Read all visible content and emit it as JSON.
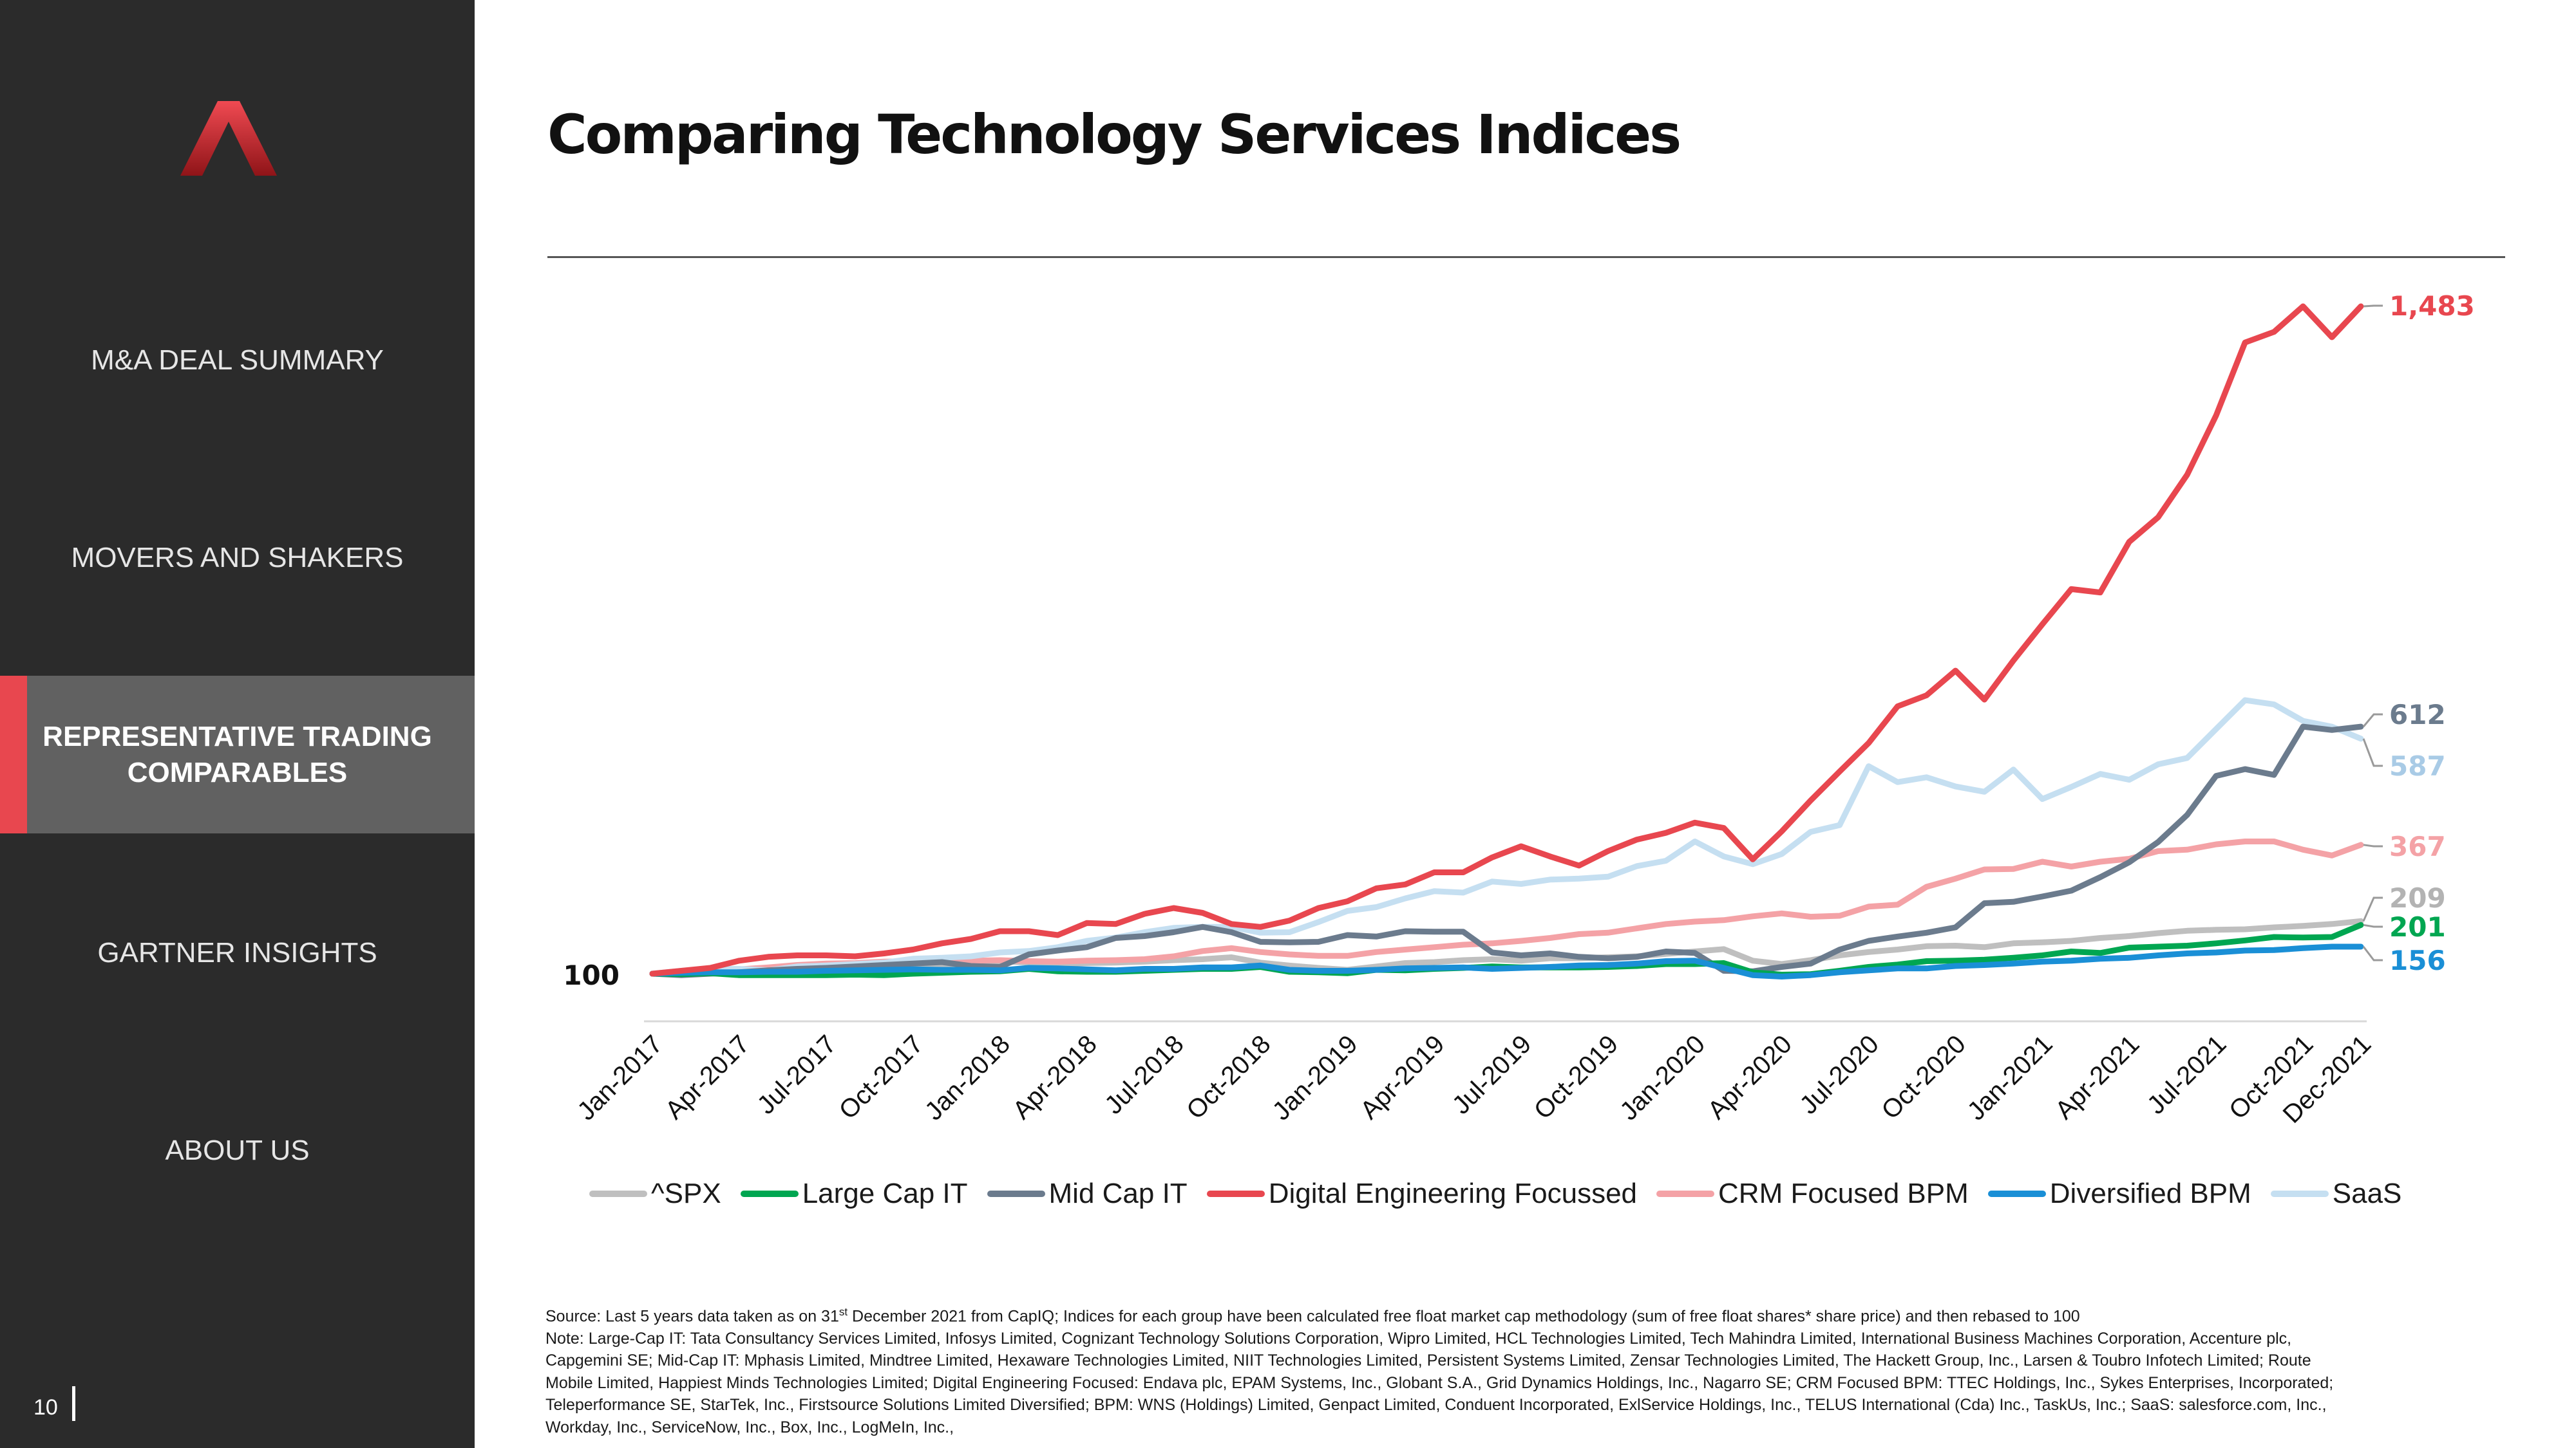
{
  "sidebar": {
    "logo_icon": "red-chevron-logo",
    "items": [
      {
        "label": "M&A DEAL SUMMARY",
        "active": false
      },
      {
        "label": "MOVERS AND SHAKERS",
        "active": false
      },
      {
        "label": [
          "REPRESENTATIVE TRADING",
          "COMPARABLES"
        ],
        "active": true
      },
      {
        "label": "GARTNER INSIGHTS",
        "active": false
      },
      {
        "label": "ABOUT US",
        "active": false
      }
    ],
    "page_number": "10"
  },
  "page": {
    "title": "Comparing Technology Services Indices"
  },
  "footnotes": {
    "source_pre": "Source: Last 5 years data taken as on 31",
    "source_sup": "st",
    "source_post": " December 2021 from CapIQ; Indices for each group have been calculated free float market cap methodology (sum of free float shares* share price) and then rebased to 100",
    "note_1": "Note: Large-Cap IT: Tata Consultancy Services Limited, Infosys Limited, Cognizant Technology Solutions Corporation, Wipro Limited, HCL Technologies Limited, Tech Mahindra Limited, International Business Machines Corporation, Accenture plc,",
    "note_2": "Capgemini SE; Mid-Cap IT: Mphasis Limited, Mindtree Limited, Hexaware Technologies Limited, NIIT Technologies Limited, Persistent Systems Limited, Zensar Technologies Limited, The Hackett Group, Inc., Larsen & Toubro Infotech Limited; Route",
    "note_3": "Mobile Limited, Happiest Minds Technologies Limited; Digital Engineering Focused: Endava plc, EPAM Systems, Inc., Globant S.A., Grid Dynamics Holdings, Inc., Nagarro SE; CRM Focused BPM: TTEC Holdings, Inc., Sykes Enterprises, Incorporated;",
    "note_4": "Teleperformance SE, StarTek, Inc., Firstsource Solutions Limited Diversified; BPM: WNS (Holdings) Limited, Genpact Limited, Conduent Incorporated, ExlService Holdings, Inc., TELUS International (Cda) Inc., TaskUs, Inc.; SaaS: salesforce.com, Inc.,",
    "note_5": "Workday, Inc., ServiceNow, Inc., Box, Inc., LogMeIn, Inc.,"
  },
  "chart_data": {
    "type": "line",
    "x_start_label": "100",
    "x_tick_labels": [
      "Jan-2017",
      "Apr-2017",
      "Jul-2017",
      "Oct-2017",
      "Jan-2018",
      "Apr-2018",
      "Jul-2018",
      "Oct-2018",
      "Jan-2019",
      "Apr-2019",
      "Jul-2019",
      "Oct-2019",
      "Jan-2020",
      "Apr-2020",
      "Jul-2020",
      "Oct-2020",
      "Jan-2021",
      "Apr-2021",
      "Jul-2021",
      "Oct-2021",
      "Dec-2021"
    ],
    "x": [
      "Jan-2017",
      "Feb-2017",
      "Mar-2017",
      "Apr-2017",
      "May-2017",
      "Jun-2017",
      "Jul-2017",
      "Aug-2017",
      "Sep-2017",
      "Oct-2017",
      "Nov-2017",
      "Dec-2017",
      "Jan-2018",
      "Feb-2018",
      "Mar-2018",
      "Apr-2018",
      "May-2018",
      "Jun-2018",
      "Jul-2018",
      "Aug-2018",
      "Sep-2018",
      "Oct-2018",
      "Nov-2018",
      "Dec-2018",
      "Jan-2019",
      "Feb-2019",
      "Mar-2019",
      "Apr-2019",
      "May-2019",
      "Jun-2019",
      "Jul-2019",
      "Aug-2019",
      "Sep-2019",
      "Oct-2019",
      "Nov-2019",
      "Dec-2019",
      "Jan-2020",
      "Feb-2020",
      "Mar-2020",
      "Apr-2020",
      "May-2020",
      "Jun-2020",
      "Jul-2020",
      "Aug-2020",
      "Sep-2020",
      "Oct-2020",
      "Nov-2020",
      "Dec-2020",
      "Jan-2021",
      "Feb-2021",
      "Mar-2021",
      "Apr-2021",
      "May-2021",
      "Jun-2021",
      "Jul-2021",
      "Aug-2021",
      "Sep-2021",
      "Oct-2021",
      "Nov-2021",
      "Dec-2021"
    ],
    "ylim": [
      -50,
      1550
    ],
    "grid": false,
    "legend_position": "bottom",
    "end_labels": [
      "1,483",
      "612",
      "587",
      "367",
      "209",
      "201",
      "156"
    ],
    "series": [
      {
        "name": "^SPX",
        "color": "#bfbfbf",
        "end_label": "209",
        "values": [
          100,
          104,
          104,
          105,
          106,
          107,
          108,
          108,
          110,
          112,
          115,
          118,
          126,
          123,
          120,
          122,
          123,
          125,
          128,
          130,
          134,
          123,
          117,
          112,
          108,
          115,
          122,
          124,
          128,
          130,
          127,
          132,
          132,
          134,
          136,
          141,
          146,
          151,
          127,
          120,
          128,
          138,
          145,
          150,
          157,
          158,
          155,
          163,
          165,
          168,
          174,
          178,
          184,
          189,
          191,
          192,
          196,
          199,
          203,
          209
        ]
      },
      {
        "name": "Large Cap IT",
        "color": "#00a651",
        "end_label": "201",
        "values": [
          100,
          99,
          101,
          97,
          97,
          97,
          97,
          98,
          97,
          100,
          102,
          104,
          105,
          110,
          105,
          104,
          104,
          106,
          108,
          110,
          110,
          114,
          104,
          103,
          101,
          108,
          107,
          110,
          112,
          115,
          113,
          113,
          113,
          114,
          116,
          120,
          120,
          122,
          103,
          98,
          99,
          106,
          114,
          119,
          126,
          127,
          129,
          133,
          138,
          146,
          143,
          154,
          156,
          158,
          163,
          169,
          176,
          175,
          176,
          201
        ]
      },
      {
        "name": "Mid Cap IT",
        "color": "#6b7b8d",
        "end_label": "612",
        "values": [
          100,
          97,
          100,
          103,
          107,
          110,
          112,
          115,
          118,
          121,
          124,
          116,
          114,
          140,
          148,
          155,
          174,
          178,
          186,
          197,
          186,
          166,
          165,
          166,
          180,
          177,
          188,
          187,
          187,
          144,
          138,
          142,
          135,
          132,
          135,
          146,
          143,
          106,
          105,
          114,
          121,
          150,
          168,
          177,
          185,
          196,
          246,
          249,
          260,
          272,
          300,
          331,
          373,
          429,
          510,
          524,
          512,
          612,
          605,
          612
        ]
      },
      {
        "name": "Digital Engineering Focussed",
        "color": "#e8474f",
        "end_label": "1,483",
        "values": [
          100,
          106,
          112,
          127,
          135,
          138,
          138,
          136,
          142,
          150,
          163,
          172,
          188,
          188,
          180,
          205,
          203,
          224,
          236,
          226,
          203,
          197,
          210,
          236,
          250,
          277,
          285,
          310,
          310,
          341,
          364,
          343,
          324,
          354,
          378,
          392,
          413,
          402,
          337,
          395,
          459,
          519,
          578,
          654,
          677,
          728,
          668,
          749,
          824,
          897,
          890,
          995,
          1046,
          1134,
          1257,
          1408,
          1430,
          1483,
          1419,
          1483
        ]
      },
      {
        "name": "CRM Focused BPM",
        "color": "#f4a2a6",
        "end_label": "367",
        "values": [
          100,
          103,
          105,
          109,
          113,
          118,
          121,
          122,
          125,
          126,
          128,
          127,
          128,
          126,
          125,
          127,
          128,
          130,
          136,
          147,
          153,
          145,
          140,
          137,
          137,
          145,
          150,
          155,
          160,
          163,
          168,
          174,
          182,
          185,
          194,
          203,
          208,
          211,
          219,
          225,
          218,
          220,
          239,
          243,
          280,
          297,
          316,
          317,
          332,
          322,
          332,
          338,
          354,
          357,
          368,
          374,
          374,
          357,
          345,
          367
        ]
      },
      {
        "name": "Diversified BPM",
        "color": "#1a8fd6",
        "end_label": "156",
        "values": [
          100,
          102,
          103,
          103,
          104,
          104,
          106,
          107,
          108,
          109,
          108,
          108,
          107,
          112,
          111,
          109,
          107,
          110,
          110,
          113,
          113,
          117,
          108,
          106,
          106,
          108,
          111,
          112,
          113,
          110,
          112,
          114,
          117,
          118,
          121,
          126,
          127,
          112,
          97,
          94,
          97,
          103,
          107,
          111,
          111,
          116,
          118,
          121,
          125,
          127,
          131,
          133,
          138,
          142,
          144,
          148,
          149,
          153,
          156,
          156
        ]
      },
      {
        "name": "SaaS",
        "color": "#c5dff1",
        "end_label": "587",
        "values": [
          100,
          106,
          110,
          110,
          107,
          115,
          117,
          120,
          123,
          131,
          133,
          136,
          144,
          147,
          155,
          168,
          175,
          186,
          195,
          197,
          197,
          185,
          186,
          207,
          230,
          238,
          256,
          271,
          268,
          291,
          286,
          295,
          297,
          301,
          323,
          334,
          374,
          343,
          327,
          348,
          394,
          408,
          530,
          497,
          507,
          488,
          477,
          523,
          462,
          487,
          514,
          502,
          534,
          547,
          607,
          667,
          658,
          624,
          612,
          587
        ]
      }
    ]
  }
}
